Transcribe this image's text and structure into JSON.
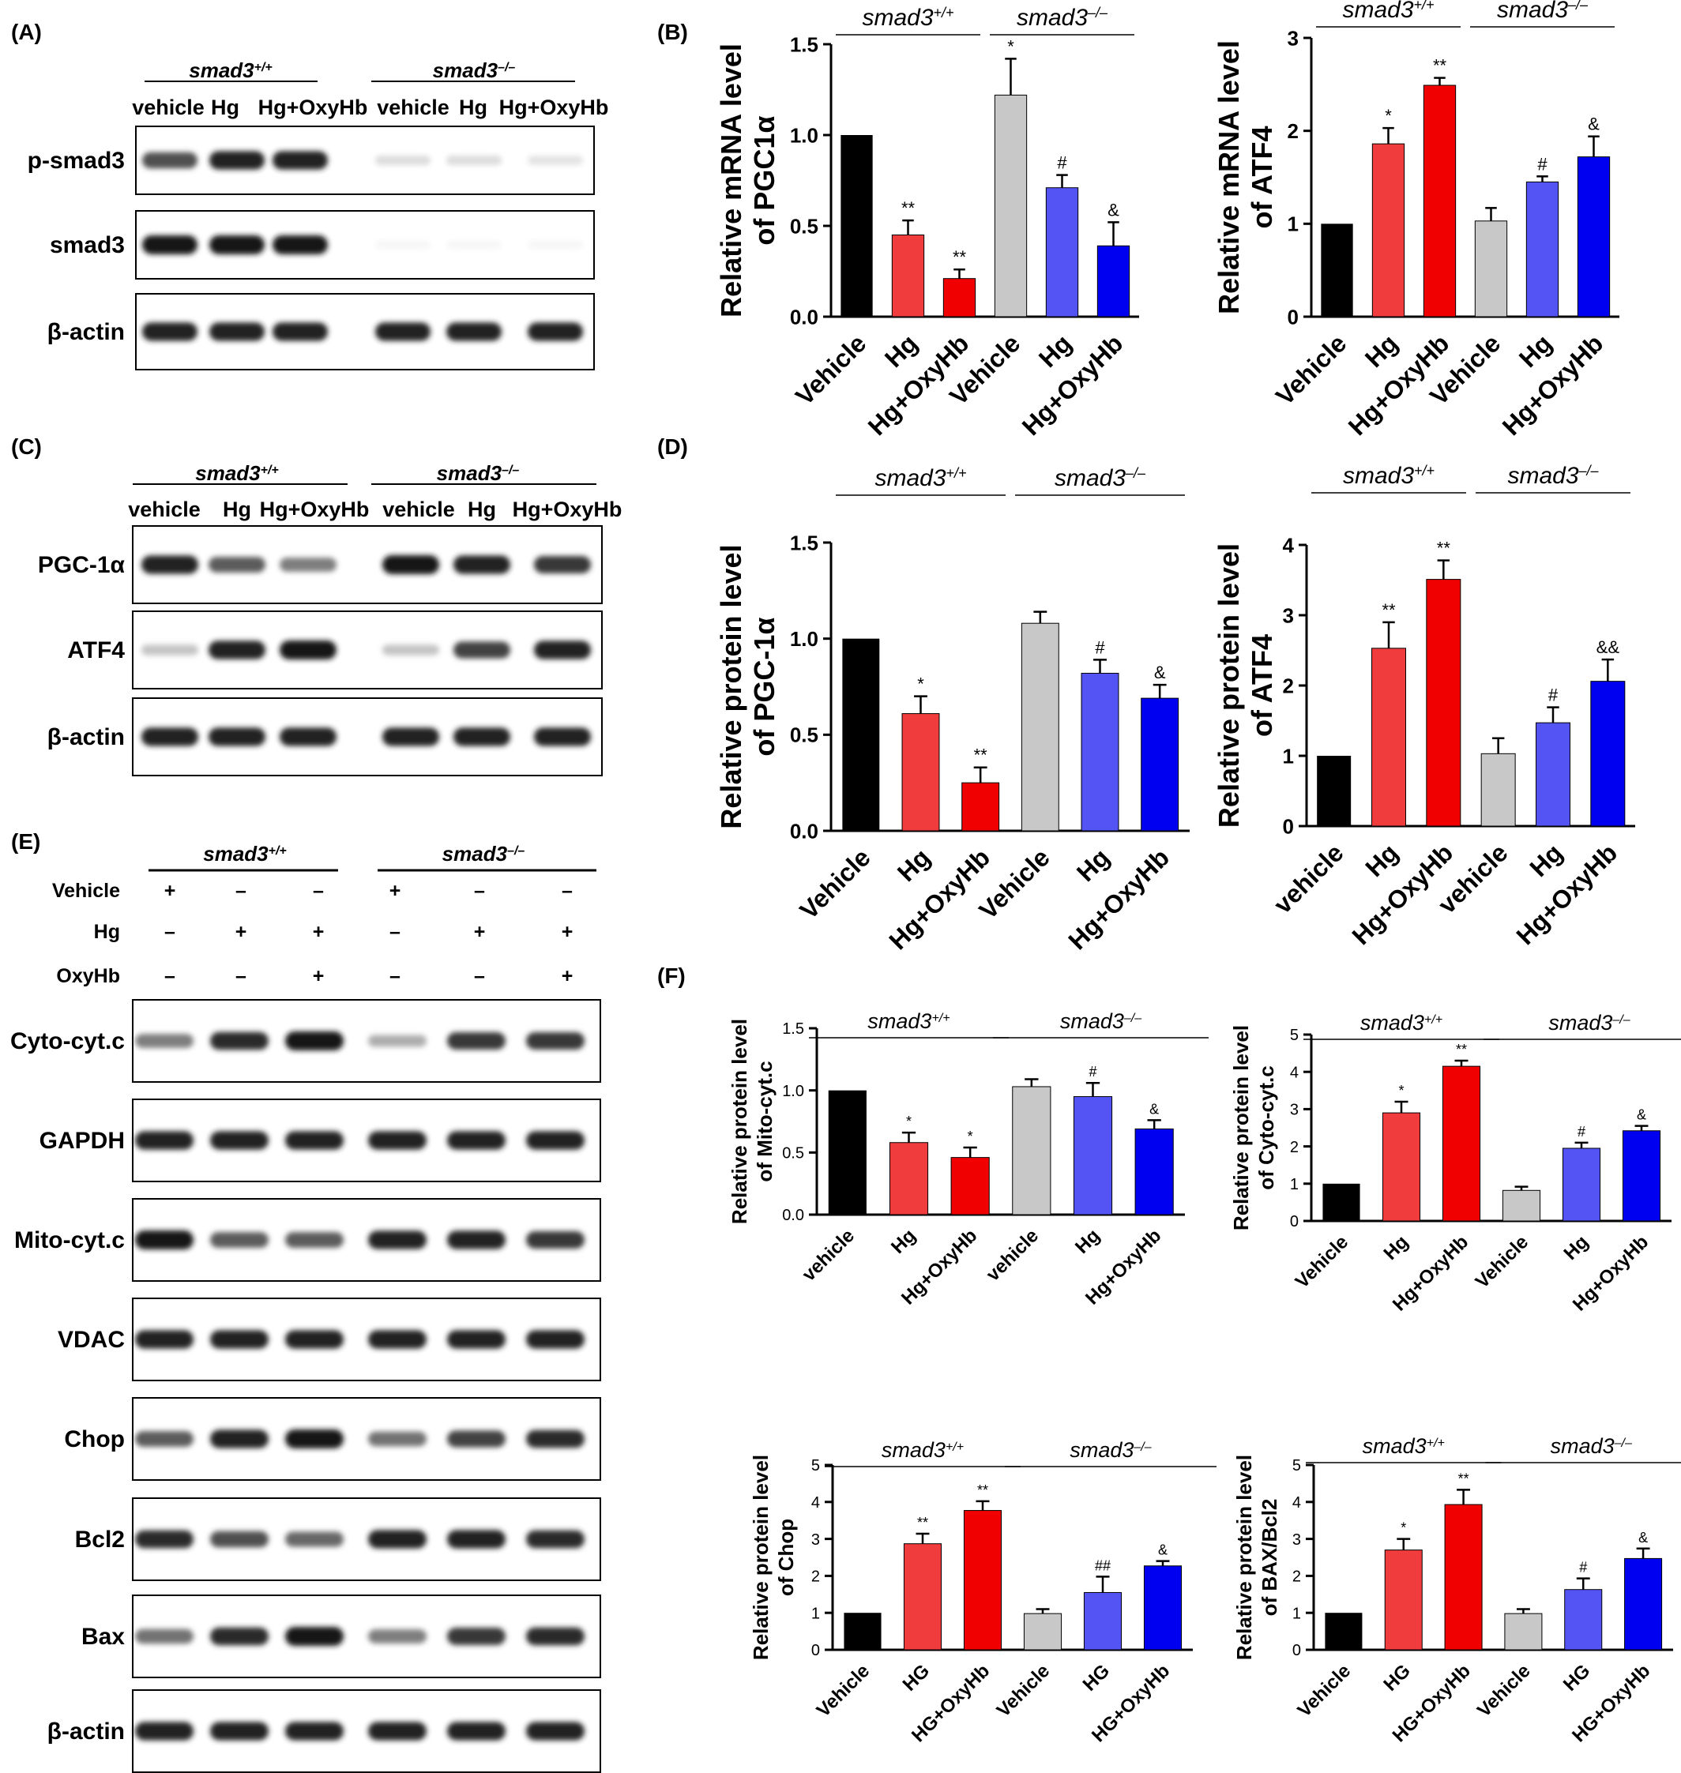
{
  "panels": {
    "A": {
      "letter": "(A)",
      "groups": [
        {
          "gene": "smad3",
          "sup": "+/+"
        },
        {
          "gene": "smad3",
          "sup": "–/–"
        }
      ],
      "lanes": [
        "vehicle",
        "Hg",
        "Hg+OxyHb",
        "vehicle",
        "Hg",
        "Hg+OxyHb"
      ],
      "blots": [
        {
          "label": "p-smad3",
          "intensity": [
            0.75,
            0.95,
            0.95,
            0.15,
            0.15,
            0.12
          ]
        },
        {
          "label": "smad3",
          "intensity": [
            1.0,
            1.0,
            1.0,
            0.04,
            0.04,
            0.04
          ]
        },
        {
          "label": "β-actin",
          "intensity": [
            0.95,
            0.95,
            0.95,
            0.95,
            0.95,
            0.95
          ]
        }
      ]
    },
    "C": {
      "letter": "(C)",
      "groups": [
        {
          "gene": "smad3",
          "sup": "+/+"
        },
        {
          "gene": "smad3",
          "sup": "–/–"
        }
      ],
      "lanes": [
        "vehicle",
        "Hg",
        "Hg+OxyHb",
        "vehicle",
        "Hg",
        "Hg+OxyHb"
      ],
      "blots": [
        {
          "label": "PGC-1α",
          "intensity": [
            0.95,
            0.7,
            0.55,
            1.0,
            0.95,
            0.85
          ]
        },
        {
          "label": "ATF4",
          "intensity": [
            0.25,
            0.95,
            1.0,
            0.25,
            0.8,
            0.95
          ]
        },
        {
          "label": "β-actin",
          "intensity": [
            0.95,
            0.95,
            0.95,
            0.95,
            0.95,
            0.95
          ]
        }
      ]
    },
    "E": {
      "letter": "(E)",
      "groups": [
        {
          "gene": "smad3",
          "sup": "+/+"
        },
        {
          "gene": "smad3",
          "sup": "–/–"
        }
      ],
      "treatments": [
        {
          "label": "Vehicle",
          "signs": [
            "+",
            "–",
            "–",
            "+",
            "–",
            "–"
          ]
        },
        {
          "label": "Hg",
          "signs": [
            "–",
            "+",
            "+",
            "–",
            "+",
            "+"
          ]
        },
        {
          "label": "OxyHb",
          "signs": [
            "–",
            "–",
            "+",
            "–",
            "–",
            "+"
          ]
        }
      ],
      "blots": [
        {
          "label": "Cyto-cyt.c",
          "intensity": [
            0.55,
            0.9,
            1.0,
            0.35,
            0.85,
            0.85
          ]
        },
        {
          "label": "GAPDH",
          "intensity": [
            0.95,
            0.95,
            0.95,
            0.95,
            0.95,
            0.95
          ]
        },
        {
          "label": "Mito-cyt.c",
          "intensity": [
            1.0,
            0.7,
            0.7,
            0.95,
            0.95,
            0.85
          ]
        },
        {
          "label": "VDAC",
          "intensity": [
            0.95,
            0.95,
            0.95,
            0.95,
            0.95,
            0.95
          ]
        },
        {
          "label": "Chop",
          "intensity": [
            0.7,
            0.95,
            1.0,
            0.6,
            0.8,
            0.9
          ]
        },
        {
          "label": "Bcl2",
          "intensity": [
            0.9,
            0.75,
            0.65,
            0.95,
            0.95,
            0.9
          ]
        },
        {
          "label": "Bax",
          "intensity": [
            0.6,
            0.9,
            1.0,
            0.55,
            0.85,
            0.9
          ]
        },
        {
          "label": "β-actin",
          "intensity": [
            0.95,
            0.95,
            0.95,
            0.95,
            0.95,
            0.95
          ]
        }
      ]
    },
    "B": {
      "letter": "(B)"
    },
    "D": {
      "letter": "(D)"
    },
    "F": {
      "letter": "(F)"
    }
  },
  "series_colors": [
    "#000000",
    "#f03c3c",
    "#f00000",
    "#c8c8c8",
    "#5454f5",
    "#0000f0"
  ],
  "chart_data": [
    {
      "id": "B1",
      "type": "bar",
      "ylabel": [
        "Relative mRNA level",
        "of PGC1α"
      ],
      "categories": [
        "Vehicle",
        "Hg",
        "Hg+OxyHb",
        "Vehicle",
        "Hg",
        "Hg+OxyHb"
      ],
      "values": [
        1.0,
        0.45,
        0.21,
        1.22,
        0.71,
        0.39
      ],
      "errors": [
        0,
        0.08,
        0.05,
        0.2,
        0.07,
        0.13
      ],
      "annotations": [
        "",
        "**",
        "**",
        "*",
        "#",
        "&"
      ],
      "ylim": [
        0,
        1.5
      ],
      "yticks": [
        "0.0",
        "0.5",
        "1.0",
        "1.5"
      ],
      "groups": [
        {
          "gene": "smad3",
          "sup": "+/+"
        },
        {
          "gene": "smad3",
          "sup": "–/–"
        }
      ]
    },
    {
      "id": "B2",
      "type": "bar",
      "ylabel": [
        "Relative mRNA level",
        "of ATF4"
      ],
      "categories": [
        "Vehicle",
        "Hg",
        "Hg+OxyHb",
        "Vehicle",
        "Hg",
        "Hg+OxyHb"
      ],
      "values": [
        1.0,
        1.86,
        2.49,
        1.03,
        1.45,
        1.72
      ],
      "errors": [
        0,
        0.17,
        0.08,
        0.14,
        0.06,
        0.22
      ],
      "annotations": [
        "",
        "*",
        "**",
        "",
        "#",
        "&"
      ],
      "ylim": [
        0,
        3
      ],
      "yticks": [
        "0",
        "1",
        "2",
        "3"
      ],
      "groups": [
        {
          "gene": "smad3",
          "sup": "+/+"
        },
        {
          "gene": "smad3",
          "sup": "–/–"
        }
      ]
    },
    {
      "id": "D1",
      "type": "bar",
      "ylabel": [
        "Relative protein level",
        "of PGC-1α"
      ],
      "categories": [
        "Vehicle",
        "Hg",
        "Hg+OxyHb",
        "Vehicle",
        "Hg",
        "Hg+OxyHb"
      ],
      "values": [
        1.0,
        0.61,
        0.25,
        1.08,
        0.82,
        0.69
      ],
      "errors": [
        0,
        0.09,
        0.08,
        0.06,
        0.07,
        0.07
      ],
      "annotations": [
        "",
        "*",
        "**",
        "",
        "#",
        "&"
      ],
      "ylim": [
        0,
        1.5
      ],
      "yticks": [
        "0.0",
        "0.5",
        "1.0",
        "1.5"
      ],
      "groups": [
        {
          "gene": "smad3",
          "sup": "+/+"
        },
        {
          "gene": "smad3",
          "sup": "–/–"
        }
      ]
    },
    {
      "id": "D2",
      "type": "bar",
      "ylabel": [
        "Relative protein level",
        "of ATF4"
      ],
      "categories": [
        "vehicle",
        "Hg",
        "Hg+OxyHb",
        "vehicle",
        "Hg",
        "Hg+OxyHb"
      ],
      "values": [
        1.0,
        2.53,
        3.51,
        1.03,
        1.47,
        2.06
      ],
      "errors": [
        0,
        0.37,
        0.27,
        0.22,
        0.22,
        0.31
      ],
      "annotations": [
        "",
        "**",
        "**",
        "",
        "#",
        "&&"
      ],
      "ylim": [
        0,
        4
      ],
      "yticks": [
        "0",
        "1",
        "2",
        "3",
        "4"
      ],
      "groups": [
        {
          "gene": "smad3",
          "sup": "+/+"
        },
        {
          "gene": "smad3",
          "sup": "–/–"
        }
      ]
    },
    {
      "id": "F1",
      "type": "bar",
      "ylabel": [
        "Relative protein level",
        "of Mito-cyt.c"
      ],
      "categories": [
        "vehicle",
        "Hg",
        "Hg+OxyHb",
        "vehicle",
        "Hg",
        "Hg+OxyHb"
      ],
      "values": [
        1.0,
        0.58,
        0.46,
        1.03,
        0.95,
        0.69
      ],
      "errors": [
        0,
        0.08,
        0.08,
        0.06,
        0.11,
        0.07
      ],
      "annotations": [
        "",
        "*",
        "*",
        "",
        "#",
        "&"
      ],
      "ylim": [
        0,
        1.5
      ],
      "yticks": [
        "0.0",
        "0.5",
        "1.0",
        "1.5"
      ],
      "groups": [
        {
          "gene": "smad3",
          "sup": "+/+"
        },
        {
          "gene": "smad3",
          "sup": "–/–"
        }
      ]
    },
    {
      "id": "F2",
      "type": "bar",
      "ylabel": [
        "Relative protein level",
        "of Cyto-cyt.c"
      ],
      "categories": [
        "Vehicle",
        "Hg",
        "Hg+OxyHb",
        "Vehicle",
        "Hg",
        "Hg+OxyHb"
      ],
      "values": [
        1.0,
        2.9,
        4.15,
        0.82,
        1.95,
        2.42
      ],
      "errors": [
        0,
        0.3,
        0.15,
        0.1,
        0.15,
        0.13
      ],
      "annotations": [
        "",
        "*",
        "**",
        "",
        "#",
        "&"
      ],
      "ylim": [
        0,
        5
      ],
      "yticks": [
        "0",
        "1",
        "2",
        "3",
        "4",
        "5"
      ],
      "groups": [
        {
          "gene": "smad3",
          "sup": "+/+"
        },
        {
          "gene": "smad3",
          "sup": "–/–"
        }
      ]
    },
    {
      "id": "F3",
      "type": "bar",
      "ylabel": [
        "Relative protein level",
        "of Chop"
      ],
      "categories": [
        "Vehicle",
        "HG",
        "HG+OxyHb",
        "Vehicle",
        "HG",
        "HG+OxyHb"
      ],
      "values": [
        1.0,
        2.87,
        3.77,
        0.98,
        1.55,
        2.27
      ],
      "errors": [
        0,
        0.27,
        0.25,
        0.12,
        0.43,
        0.13
      ],
      "annotations": [
        "",
        "**",
        "**",
        "",
        "##",
        "&"
      ],
      "ylim": [
        0,
        5
      ],
      "yticks": [
        "0",
        "1",
        "2",
        "3",
        "4",
        "5"
      ],
      "groups": [
        {
          "gene": "smad3",
          "sup": "+/+"
        },
        {
          "gene": "smad3",
          "sup": "–/–"
        }
      ]
    },
    {
      "id": "F4",
      "type": "bar",
      "ylabel": [
        "Relative protein level",
        "of BAX/Bcl2"
      ],
      "categories": [
        "Vehicle",
        "HG",
        "HG+OxyHb",
        "Vehicle",
        "HG",
        "HG+OxyHb"
      ],
      "values": [
        1.0,
        2.7,
        3.93,
        0.98,
        1.63,
        2.47
      ],
      "errors": [
        0,
        0.3,
        0.4,
        0.12,
        0.3,
        0.27
      ],
      "annotations": [
        "",
        "*",
        "**",
        "",
        "#",
        "&"
      ],
      "ylim": [
        0,
        5
      ],
      "yticks": [
        "0",
        "1",
        "2",
        "3",
        "4",
        "5"
      ],
      "groups": [
        {
          "gene": "smad3",
          "sup": "+/+"
        },
        {
          "gene": "smad3",
          "sup": "–/–"
        }
      ]
    }
  ]
}
